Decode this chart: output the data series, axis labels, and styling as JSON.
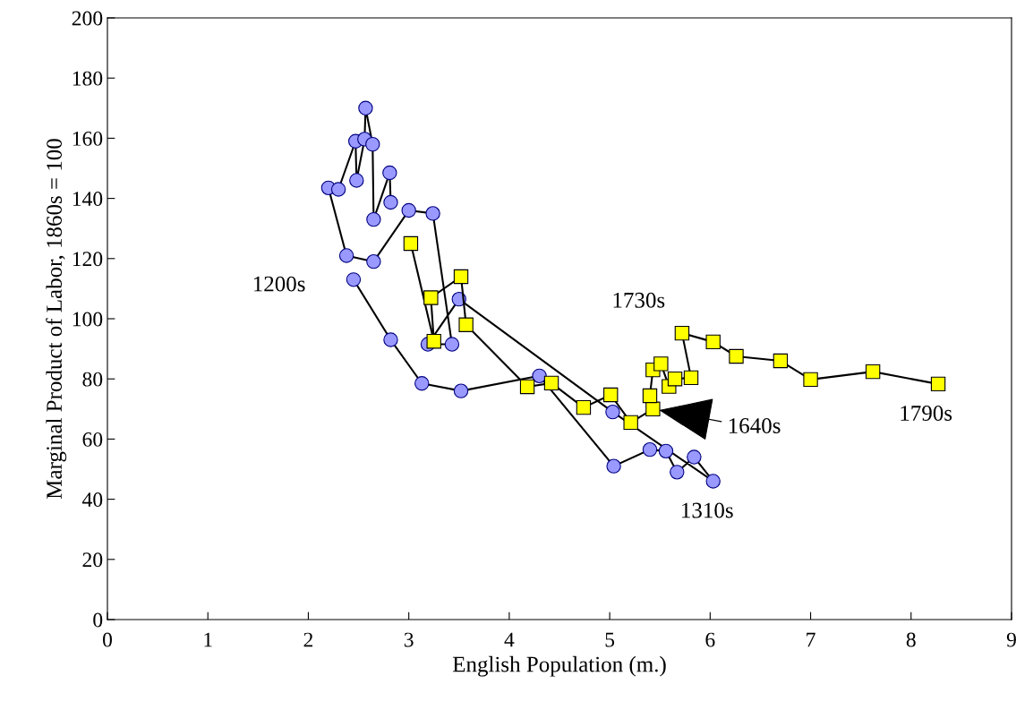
{
  "chart_data": {
    "type": "line",
    "xlabel": "English Population (m.)",
    "ylabel": "Marginal Product of Labor, 1860s = 100",
    "xlim": [
      0,
      9
    ],
    "ylim": [
      0,
      200
    ],
    "xticks": [
      0,
      1,
      2,
      3,
      4,
      5,
      6,
      7,
      8,
      9
    ],
    "yticks": [
      0,
      20,
      40,
      60,
      80,
      100,
      120,
      140,
      160,
      180,
      200
    ],
    "grid": false,
    "series": [
      {
        "color": "#9999ff",
        "marker": "circle",
        "x": [
          2.45,
          2.82,
          3.13,
          3.52,
          4.3,
          5.04,
          5.4,
          5.56,
          5.67,
          5.84,
          6.03,
          5.03,
          3.5,
          3.19,
          3.43,
          3.24,
          3.0,
          2.65,
          2.38,
          2.2,
          2.3,
          2.47,
          2.48,
          2.56,
          2.57,
          2.64,
          2.65,
          2.81,
          2.82
        ],
        "values": [
          113,
          93,
          78.5,
          76,
          81,
          51,
          56.5,
          56,
          49,
          54,
          46,
          69,
          106.5,
          91.5,
          91.5,
          135,
          136,
          119,
          121,
          143.5,
          143,
          159,
          146,
          159.7,
          170,
          158,
          133,
          148.5,
          138.7
        ]
      },
      {
        "color": "#ffff00",
        "marker": "square",
        "x": [
          3.02,
          3.25,
          3.22,
          3.52,
          3.57,
          4.18,
          4.42,
          4.74,
          5.01,
          5.21,
          5.43,
          5.4,
          5.43,
          5.51,
          5.59,
          5.65,
          5.81,
          5.72,
          6.03,
          6.26,
          6.7,
          7.0,
          7.62,
          8.27
        ],
        "values": [
          125,
          92.5,
          107,
          114,
          98,
          77.4,
          78.6,
          70.5,
          74.7,
          65.5,
          70,
          74.4,
          83,
          85,
          77.5,
          80,
          80.4,
          95.2,
          92.3,
          87.5,
          86,
          79.8,
          82.4,
          78.3
        ]
      }
    ],
    "annotations": [
      {
        "text": "1200s",
        "x": 2.45,
        "y": 113
      },
      {
        "text": "1310s",
        "x": 6.03,
        "y": 46
      },
      {
        "text": "1730s",
        "x": 5.72,
        "y": 95.2
      },
      {
        "text": "1790s",
        "x": 8.27,
        "y": 78.3
      },
      {
        "text": "1640s",
        "x": 5.43,
        "y": 70
      }
    ]
  }
}
